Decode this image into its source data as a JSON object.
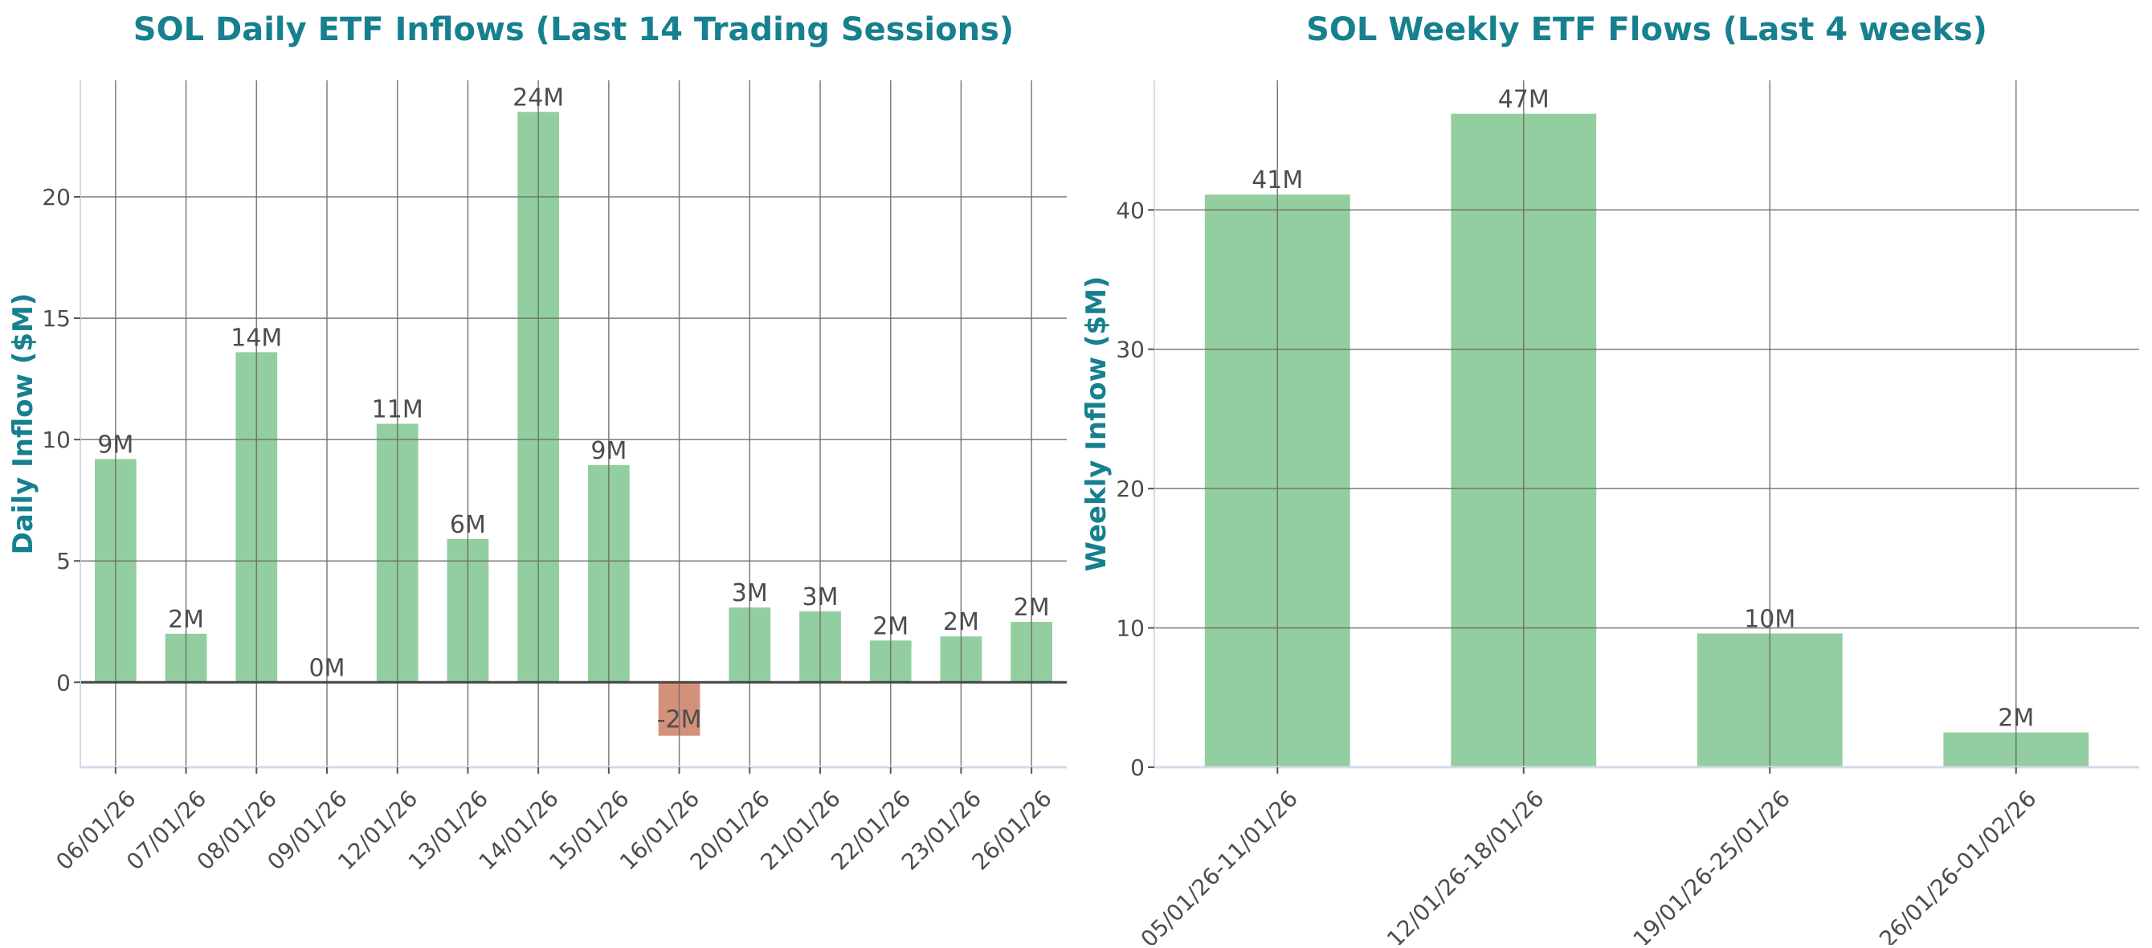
{
  "colors": {
    "title": "#17808f",
    "positive": "#93cea0",
    "negative": "#d4917a",
    "text": "#4d4d4d",
    "grid": "#6e6e6e",
    "axis": "#d5dae8"
  },
  "chart_data": [
    {
      "type": "bar",
      "title": "SOL Daily ETF Inflows (Last 14 Trading Sessions)",
      "xlabel": "",
      "ylabel": "Daily Inflow ($M)",
      "ylim": [
        -3.5,
        24.8
      ],
      "yticks": [
        0,
        5,
        10,
        15,
        20
      ],
      "grid": true,
      "zero_line": true,
      "categories": [
        "06/01/26",
        "07/01/26",
        "08/01/26",
        "09/01/26",
        "12/01/26",
        "13/01/26",
        "14/01/26",
        "15/01/26",
        "16/01/26",
        "20/01/26",
        "21/01/26",
        "22/01/26",
        "23/01/26",
        "26/01/26"
      ],
      "values": [
        9.2,
        2.0,
        13.6,
        0.0,
        10.65,
        5.9,
        23.5,
        8.95,
        -2.2,
        3.08,
        2.92,
        1.72,
        1.89,
        2.49
      ],
      "labels": [
        "9M",
        "2M",
        "14M",
        "0M",
        "11M",
        "6M",
        "24M",
        "9M",
        "-2M",
        "3M",
        "3M",
        "2M",
        "2M",
        "2M"
      ]
    },
    {
      "type": "bar",
      "title": "SOL Weekly ETF Flows (Last 4 weeks)",
      "xlabel": "",
      "ylabel": "Weekly Inflow ($M)",
      "ylim": [
        0,
        49.3
      ],
      "yticks": [
        0,
        10,
        20,
        30,
        40
      ],
      "grid": true,
      "zero_line": false,
      "categories": [
        "05/01/26-11/01/26",
        "12/01/26-18/01/26",
        "19/01/26-25/01/26",
        "26/01/26-01/02/26"
      ],
      "values": [
        41.1,
        46.9,
        9.6,
        2.5
      ],
      "labels": [
        "41M",
        "47M",
        "10M",
        "2M"
      ]
    }
  ]
}
